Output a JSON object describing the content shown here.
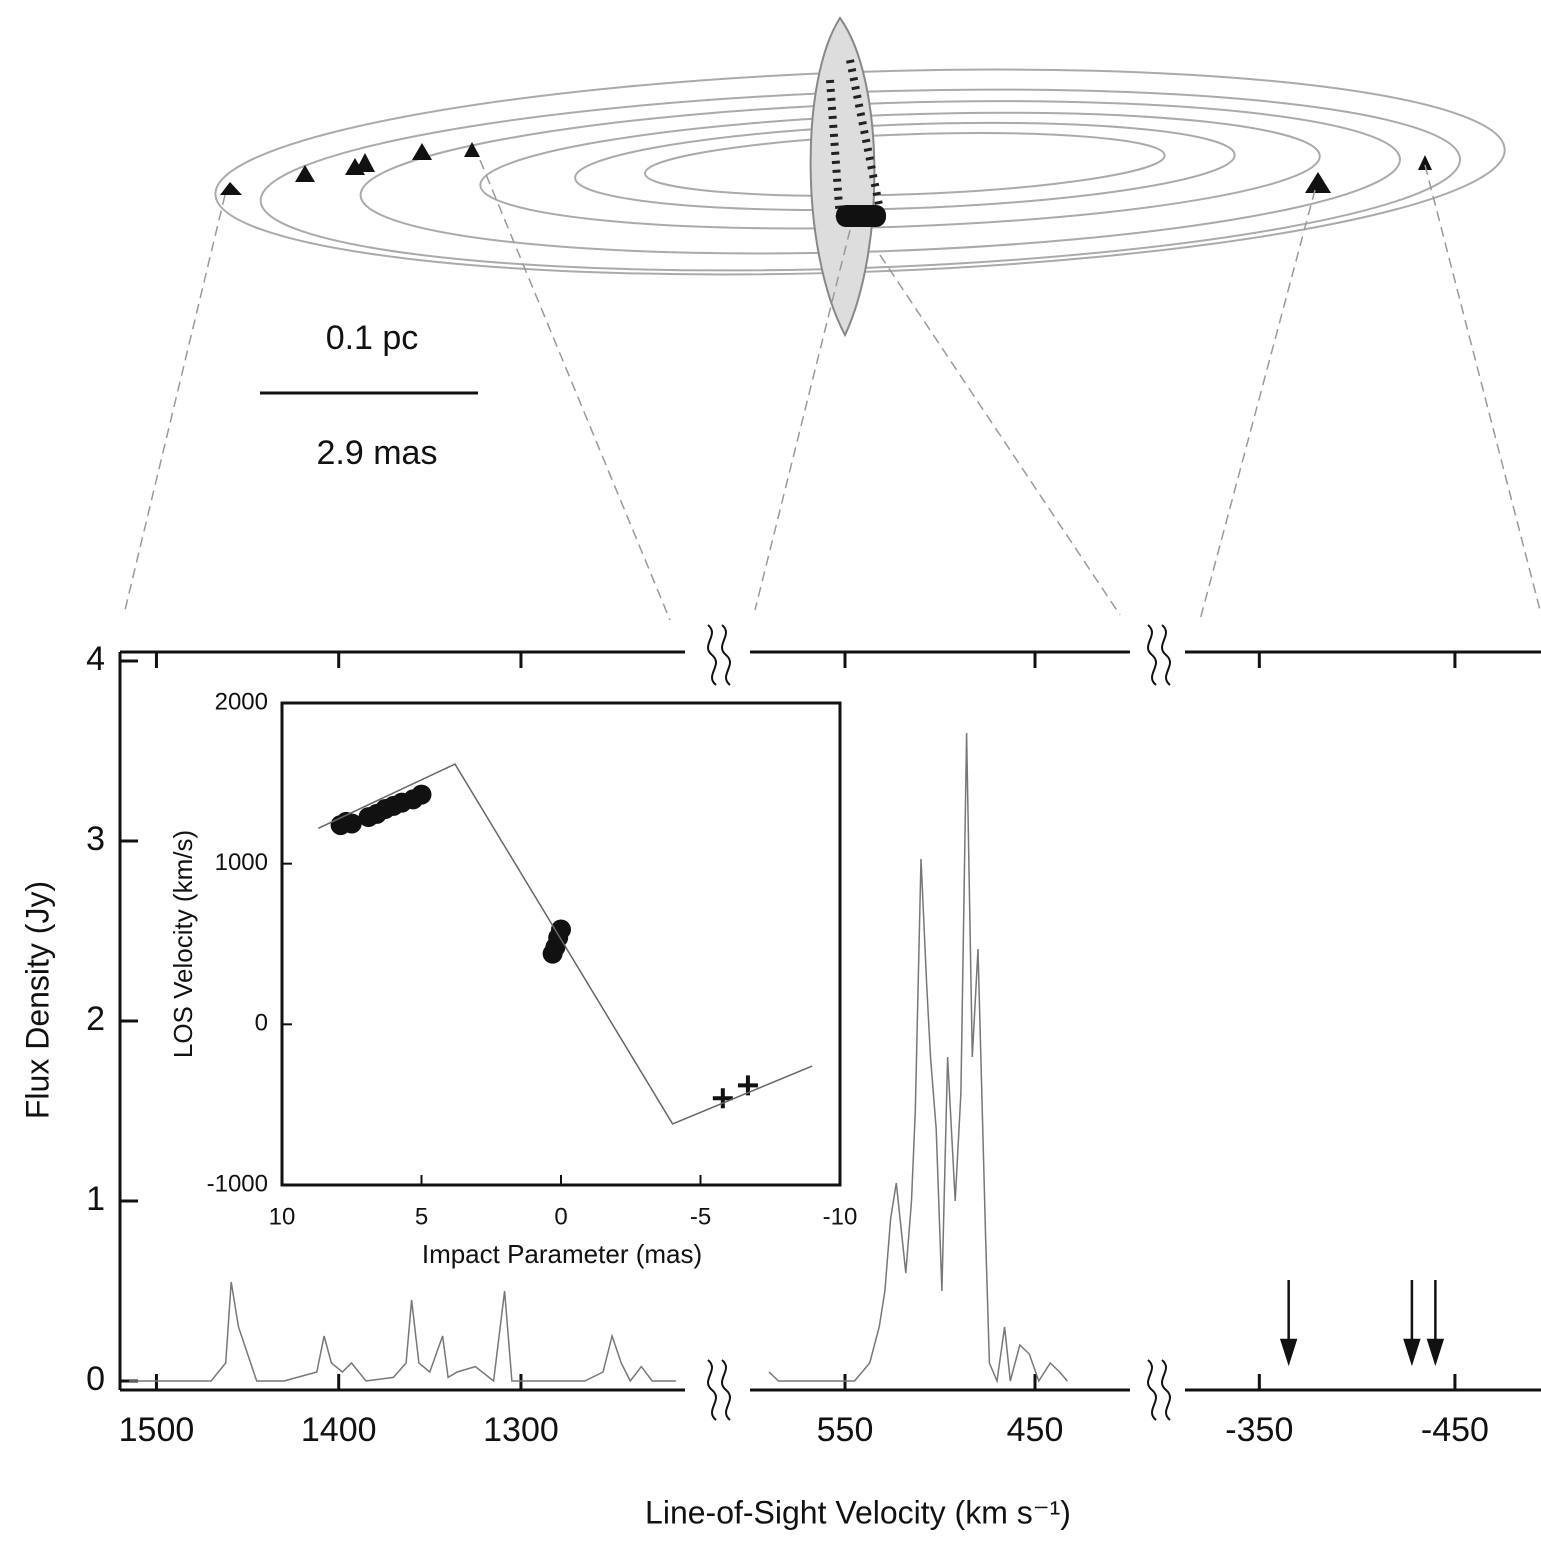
{
  "diagram": {
    "scale_top": "0.1 pc",
    "scale_bottom": "2.9 mas"
  },
  "chart_data": [
    {
      "type": "line",
      "ylabel": "Flux Density (Jy)",
      "xlabel": "Line-of-Sight Velocity (km s⁻¹)",
      "ylim": [
        -0.05,
        4.05
      ],
      "yticks": [
        0,
        1,
        2,
        3,
        4
      ],
      "color": "#777777",
      "panels": [
        {
          "xlim": [
            1520,
            1210
          ],
          "xticks": [
            1500,
            1400,
            1300
          ],
          "x": [
            1515,
            1470,
            1462,
            1459,
            1455,
            1450,
            1445,
            1430,
            1412,
            1408,
            1404,
            1398,
            1393,
            1385,
            1370,
            1363,
            1360,
            1356,
            1350,
            1343,
            1340,
            1335,
            1325,
            1315,
            1309,
            1305,
            1290,
            1265,
            1255,
            1250,
            1245,
            1240,
            1234,
            1228,
            1215
          ],
          "values": [
            0.0,
            0.0,
            0.1,
            0.55,
            0.3,
            0.15,
            0.0,
            0.0,
            0.05,
            0.25,
            0.1,
            0.05,
            0.1,
            0.0,
            0.02,
            0.1,
            0.45,
            0.1,
            0.05,
            0.25,
            0.02,
            0.05,
            0.08,
            0.0,
            0.5,
            0.0,
            0.0,
            0.0,
            0.05,
            0.25,
            0.1,
            0.0,
            0.08,
            0.0,
            0.0
          ]
        },
        {
          "xlim": [
            600,
            400
          ],
          "xticks": [
            550,
            450
          ],
          "x": [
            590,
            585,
            545,
            537,
            532,
            529,
            526,
            523,
            520,
            518,
            515,
            513,
            510,
            507,
            505,
            502,
            499,
            496,
            492,
            489,
            486,
            483,
            480,
            476,
            474,
            470,
            466,
            463,
            458,
            453,
            448,
            442,
            437,
            433
          ],
          "values": [
            0.05,
            0.0,
            0.0,
            0.1,
            0.3,
            0.5,
            0.9,
            1.1,
            0.8,
            0.6,
            1.0,
            1.5,
            2.9,
            2.2,
            1.8,
            1.4,
            0.5,
            1.8,
            1.0,
            1.6,
            3.6,
            1.8,
            2.4,
            0.8,
            0.1,
            0.0,
            0.3,
            0.0,
            0.2,
            0.15,
            0.0,
            0.1,
            0.05,
            0.0
          ]
        },
        {
          "xlim": [
            -312,
            -494
          ],
          "xticks": [
            -350,
            -450
          ]
        }
      ],
      "arrows": [
        -365,
        -428,
        -440
      ]
    },
    {
      "type": "scatter",
      "xlabel": "Impact Parameter (mas)",
      "ylabel": "LOS Velocity (km/s)",
      "xlim": [
        10,
        -10
      ],
      "xticks": [
        10,
        5,
        0,
        -5,
        -10
      ],
      "ylim": [
        -1000,
        2000
      ],
      "yticks": [
        -1000,
        0,
        1000,
        2000
      ],
      "series": [
        {
          "marker": "circle",
          "x": [
            7.9,
            7.7,
            7.5,
            6.9,
            6.6,
            6.3,
            6.0,
            5.7,
            5.3,
            5.0,
            0.3,
            0.2,
            0.1,
            0.0
          ],
          "values": [
            1240,
            1260,
            1250,
            1290,
            1310,
            1340,
            1360,
            1380,
            1400,
            1430,
            440,
            480,
            540,
            590
          ]
        },
        {
          "marker": "cross",
          "x": [
            -5.8,
            -6.7
          ],
          "values": [
            -460,
            -380
          ]
        },
        {
          "marker": "line",
          "x": [
            8.7,
            3.8,
            -4.0,
            -9.0
          ],
          "values": [
            1220,
            1620,
            -620,
            -260
          ]
        }
      ]
    }
  ]
}
